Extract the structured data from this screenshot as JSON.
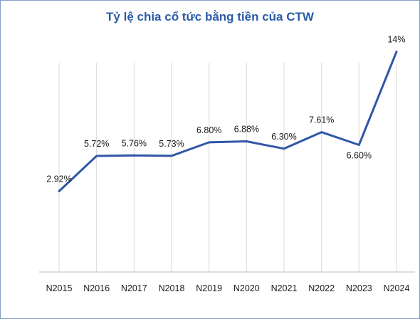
{
  "chart_data": {
    "type": "line",
    "title": "Tỷ lệ chia cổ tức bằng tiền của CTW",
    "xlabel": "",
    "ylabel": "",
    "categories": [
      "N2015",
      "N2016",
      "N2017",
      "N2018",
      "N2019",
      "N2020",
      "N2021",
      "N2022",
      "N2023",
      "N2024"
    ],
    "series": [
      {
        "values": [
          2.92,
          5.72,
          5.76,
          5.73,
          6.8,
          6.88,
          6.3,
          7.61,
          6.6,
          14
        ],
        "labels": [
          "2.92%",
          "5.72%",
          "5.76%",
          "5.73%",
          "6.80%",
          "6.88%",
          "6.30%",
          "7.61%",
          "6.60%",
          "14%"
        ]
      }
    ],
    "label_positions": [
      "above",
      "above",
      "above",
      "above",
      "above",
      "above",
      "above",
      "above",
      "below",
      "above"
    ],
    "ylim": [
      -3.5,
      15
    ],
    "grid": "vertical",
    "legend": "none",
    "colors": {
      "line": "#2f57a7",
      "title": "#2b5ca6",
      "grid": "#d9d9d9",
      "axis": "#bfbfbf",
      "frame": "#7f9fc4"
    }
  }
}
